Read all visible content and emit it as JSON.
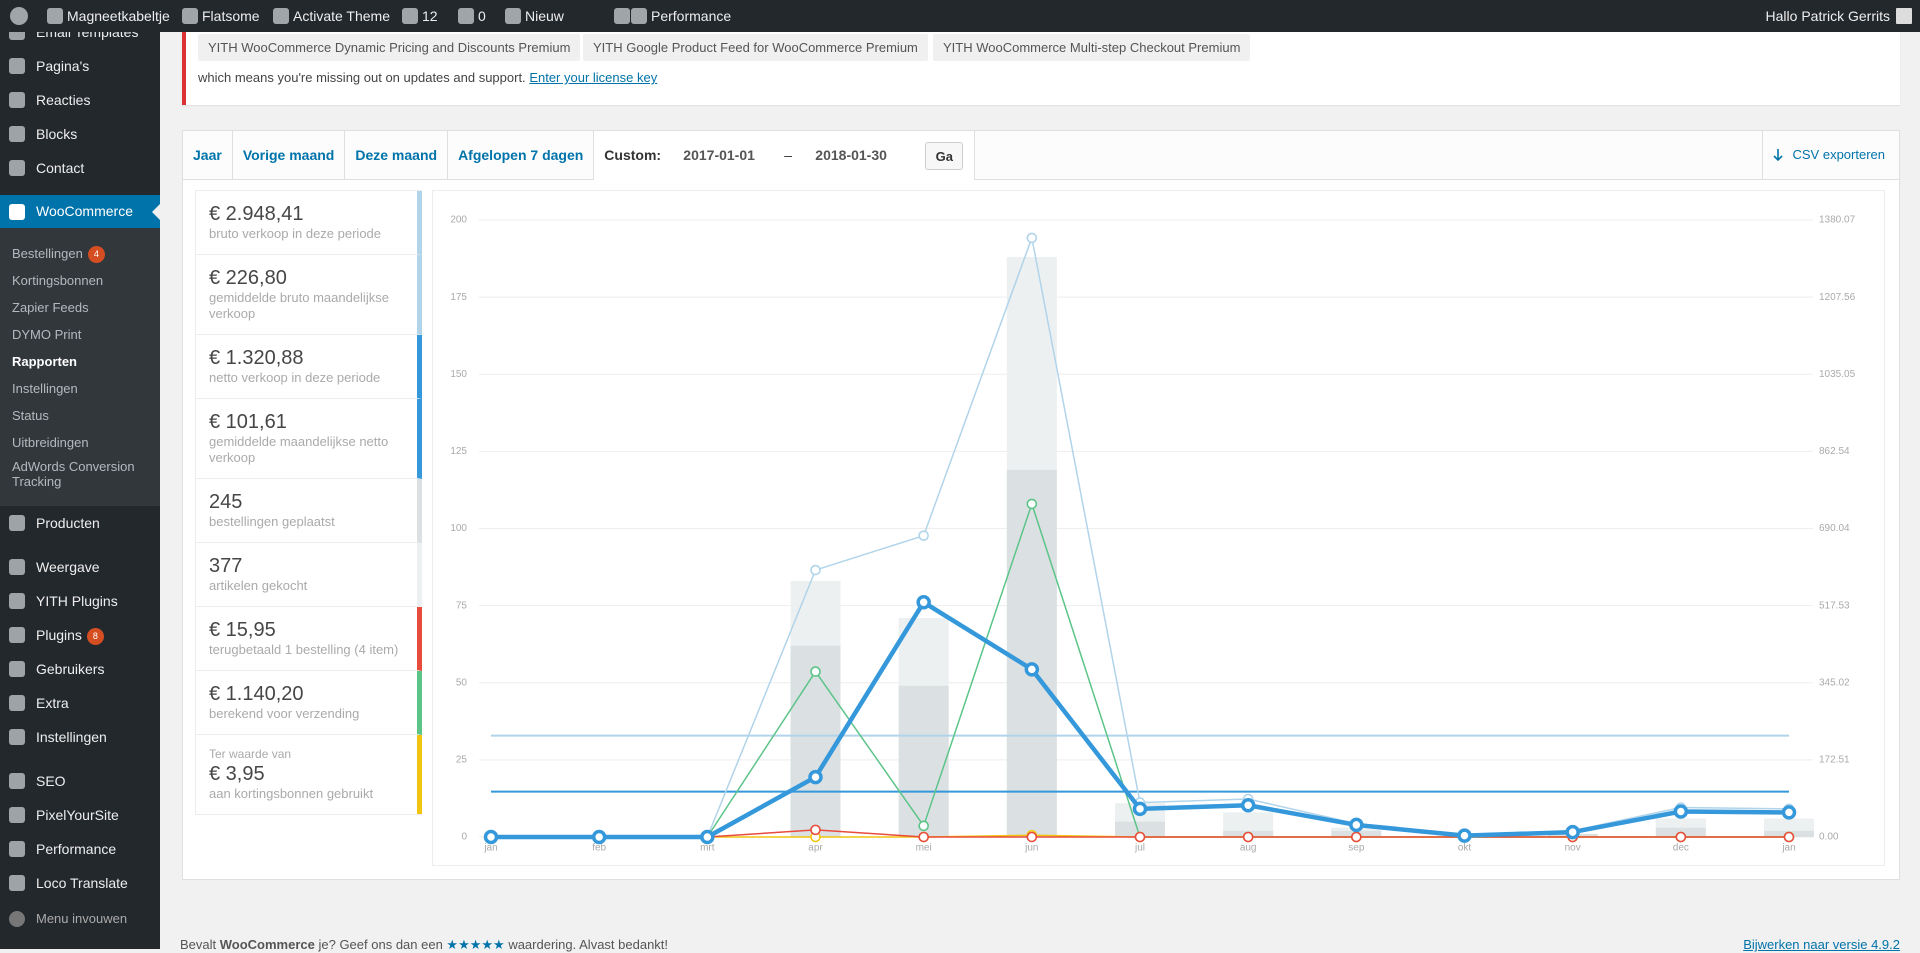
{
  "admin_bar": {
    "site": "Magneetkabeltje",
    "theme": "Flatsome",
    "activate": "Activate Theme",
    "updates": "12",
    "comments": "0",
    "new": "Nieuw",
    "performance": "Performance",
    "greeting": "Hallo Patrick Gerrits"
  },
  "sidebar": {
    "groups": [
      [
        {
          "label": "Email Templates"
        },
        {
          "label": "Pagina's"
        },
        {
          "label": "Reacties"
        },
        {
          "label": "Blocks"
        },
        {
          "label": "Contact"
        }
      ],
      [
        {
          "label": "WooCommerce",
          "current": true,
          "submenu": [
            {
              "label": "Bestellingen",
              "badge": "4"
            },
            {
              "label": "Kortingsbonnen"
            },
            {
              "label": "Zapier Feeds"
            },
            {
              "label": "DYMO Print"
            },
            {
              "label": "Rapporten",
              "current": true
            },
            {
              "label": "Instellingen"
            },
            {
              "label": "Status"
            },
            {
              "label": "Uitbreidingen"
            },
            {
              "label": "AdWords Conversion Tracking"
            }
          ]
        },
        {
          "label": "Producten"
        }
      ],
      [
        {
          "label": "Weergave"
        },
        {
          "label": "YITH Plugins"
        },
        {
          "label": "Plugins",
          "badge": "8"
        },
        {
          "label": "Gebruikers"
        },
        {
          "label": "Extra"
        },
        {
          "label": "Instellingen"
        }
      ],
      [
        {
          "label": "SEO"
        },
        {
          "label": "PixelYourSite"
        },
        {
          "label": "Performance"
        },
        {
          "label": "Loco Translate"
        }
      ]
    ],
    "collapse": "Menu invouwen"
  },
  "notice": {
    "plugins": [
      "YITH WooCommerce Dynamic Pricing and Discounts Premium",
      "YITH Google Product Feed for WooCommerce Premium",
      "YITH WooCommerce Multi-step Checkout Premium"
    ],
    "text": "which means you're missing out on updates and support.",
    "link": "Enter your license key"
  },
  "tabs": {
    "ranges": [
      "Jaar",
      "Vorige maand",
      "Deze maand",
      "Afgelopen 7 dagen"
    ],
    "custom_label": "Custom:",
    "start": "2017-01-01",
    "dash": "–",
    "end": "2018-01-30",
    "go": "Ga",
    "export": "CSV exporteren"
  },
  "stats": [
    {
      "value": "€ 2.948,41",
      "label": "bruto verkoop in deze periode",
      "color": "#b1d4ea"
    },
    {
      "value": "€ 226,80",
      "label": "gemiddelde bruto maandelijkse verkoop",
      "color": "#b1d4ea"
    },
    {
      "value": "€ 1.320,88",
      "label": "netto verkoop in deze periode",
      "color": "#3498db"
    },
    {
      "value": "€ 101,61",
      "label": "gemiddelde maandelijkse netto verkoop",
      "color": "#3498db"
    },
    {
      "value": "245",
      "label": "bestellingen geplaatst",
      "color": "#dbe1e3"
    },
    {
      "value": "377",
      "label": "artikelen gekocht",
      "color": "#ecf0f1"
    },
    {
      "value": "€ 15,95",
      "label": "terugbetaald 1 bestelling (4 item)",
      "color": "#e74c3c"
    },
    {
      "value": "€ 1.140,20",
      "label": "berekend voor verzending",
      "color": "#5cc488"
    },
    {
      "prefix": "Ter waarde van",
      "value": "€ 3,95",
      "label": "aan kortingsbonnen gebruikt",
      "color": "#f1c40f"
    }
  ],
  "footer": {
    "parts": [
      "Bevalt ",
      "WooCommerce",
      " je? Geef ons dan een ",
      "★★★★★",
      " waardering. Alvast bedankt!"
    ],
    "update": "Bijwerken naar versie 4.9.2"
  },
  "chart_data": {
    "type": "combo",
    "categories": [
      "jan",
      "feb",
      "mrt",
      "apr",
      "mei",
      "jun",
      "jul",
      "aug",
      "sep",
      "okt",
      "nov",
      "dec",
      "jan"
    ],
    "ylim": [
      0,
      200
    ],
    "yticks": [
      0,
      25,
      50,
      75,
      100,
      125,
      150,
      175,
      200
    ],
    "y2lim": [
      0,
      1380.07
    ],
    "y2ticks": [
      {
        "value": 0,
        "label": "0.00"
      },
      172.51,
      345.02,
      517.53,
      690.04,
      862.54,
      1035.05,
      1207.56,
      1380.07
    ],
    "grid": true,
    "series": [
      {
        "type": "bar",
        "color": "#ecf0f1",
        "values": [
          0,
          0,
          0,
          83,
          71,
          188,
          11,
          8,
          3,
          0,
          1,
          6,
          6
        ]
      },
      {
        "type": "bar",
        "color": "#dbe1e3",
        "values": [
          0,
          0,
          0,
          62,
          49,
          119,
          5,
          2,
          2,
          0,
          1,
          3,
          2
        ]
      },
      {
        "type": "line",
        "axis": "y2",
        "color": "#b1d4ea",
        "line_width": 1.5,
        "values": [
          0,
          0,
          0,
          597,
          674,
          1340,
          77,
          85,
          30,
          3,
          14,
          66,
          63
        ]
      },
      {
        "type": "line",
        "axis": "y2",
        "color": "#5cc488",
        "line_width": 1.5,
        "values": [
          0,
          0,
          0,
          370,
          25,
          745,
          0,
          0,
          0,
          0,
          0,
          0,
          0
        ]
      },
      {
        "type": "line",
        "axis": "y2",
        "color": "#f1c40f",
        "line_width": 1.5,
        "values": [
          0,
          0,
          0,
          0,
          0,
          3.95,
          0,
          0,
          0,
          0,
          0,
          0,
          0
        ]
      },
      {
        "type": "line",
        "axis": "y2",
        "color": "#e74c3c",
        "line_width": 1.5,
        "values": [
          0,
          0,
          0,
          15.95,
          0,
          0,
          0,
          0,
          0,
          0,
          0,
          0,
          0
        ]
      },
      {
        "type": "line",
        "axis": "y2",
        "color": "#3498db",
        "line_width": 4.5,
        "values": [
          0,
          0,
          0,
          134,
          525,
          375,
          63,
          71,
          27,
          3,
          11,
          57,
          55
        ]
      }
    ],
    "average_lines": [
      {
        "axis": "y2",
        "color": "#b1d4ea",
        "value": 226.8
      },
      {
        "axis": "y2",
        "color": "#3498db",
        "value": 101.61
      }
    ]
  }
}
